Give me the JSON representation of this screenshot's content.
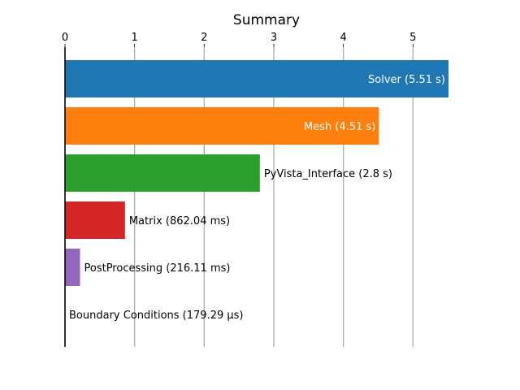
{
  "chart_data": {
    "type": "bar",
    "orientation": "horizontal",
    "title": "Summary",
    "xlabel": "",
    "ylabel": "",
    "x_axis_position": "top",
    "xlim": [
      0,
      5.51
    ],
    "xticks": [
      "0",
      "1",
      "2",
      "3",
      "4",
      "5"
    ],
    "grid": "vertical",
    "categories": [
      "Solver",
      "Mesh",
      "PyVista_Interface",
      "Matrix",
      "PostProcessing",
      "Boundary Conditions"
    ],
    "values": [
      5.51,
      4.51,
      2.8,
      0.86204,
      0.21611,
      0.00017929
    ],
    "bar_labels": [
      "Solver (5.51 s)",
      "Mesh (4.51 s)",
      "PyVista_Interface (2.8 s)",
      "Matrix (862.04 ms)",
      "PostProcessing (216.11 ms)",
      "Boundary Conditions (179.29 µs)"
    ],
    "label_inside": [
      true,
      true,
      false,
      false,
      false,
      false
    ],
    "colors": [
      "#1f77b4",
      "#ff7f0e",
      "#2ca02c",
      "#d62728",
      "#9467bd",
      "#8c564b"
    ]
  }
}
